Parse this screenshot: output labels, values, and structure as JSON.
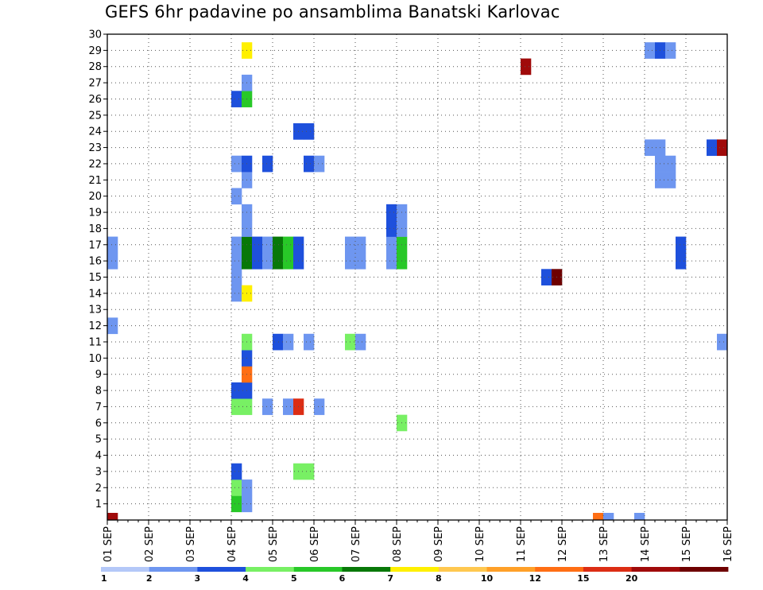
{
  "chart_data": {
    "type": "heatmap",
    "title": "GEFS 6hr padavine po ansamblima Banatski Karlovac",
    "xlabel": "",
    "ylabel": "",
    "x_ticks": [
      "01 SEP",
      "02 SEP",
      "03 SEP",
      "04 SEP",
      "05 SEP",
      "06 SEP",
      "07 SEP",
      "08 SEP",
      "09 SEP",
      "10 SEP",
      "11 SEP",
      "12 SEP",
      "13 SEP",
      "14 SEP",
      "15 SEP",
      "16 SEP"
    ],
    "x_range_days": [
      1,
      16
    ],
    "y_ticks": [
      1,
      2,
      3,
      4,
      5,
      6,
      7,
      8,
      9,
      10,
      11,
      12,
      13,
      14,
      15,
      16,
      17,
      18,
      19,
      20,
      21,
      22,
      23,
      24,
      25,
      26,
      27,
      28,
      29,
      30
    ],
    "y_range": [
      0,
      30
    ],
    "grid": true,
    "time_step_hours": 6,
    "colorbar": {
      "labels": [
        "1",
        "2",
        "3",
        "4",
        "5",
        "6",
        "7",
        "8",
        "10",
        "12",
        "15",
        "20"
      ],
      "colors": [
        "#b4c8f8",
        "#6e96f0",
        "#1e50dc",
        "#78f064",
        "#28c828",
        "#087808",
        "#fff000",
        "#ffc850",
        "#ffa028",
        "#ff6e14",
        "#dc2d14",
        "#a00a0a",
        "#6e0000"
      ]
    },
    "cells": [
      {
        "member": 1,
        "t": 12,
        "level": 4
      },
      {
        "member": 1,
        "t": 13,
        "level": 1
      },
      {
        "member": 2,
        "t": 12,
        "level": 3
      },
      {
        "member": 2,
        "t": 13,
        "level": 1
      },
      {
        "member": 3,
        "t": 12,
        "level": 2
      },
      {
        "member": 3,
        "t": 18,
        "level": 3
      },
      {
        "member": 3,
        "t": 19,
        "level": 3
      },
      {
        "member": 6,
        "t": 28,
        "level": 3
      },
      {
        "member": 7,
        "t": 12,
        "level": 3
      },
      {
        "member": 7,
        "t": 13,
        "level": 3
      },
      {
        "member": 7,
        "t": 15,
        "level": 1
      },
      {
        "member": 7,
        "t": 17,
        "level": 1
      },
      {
        "member": 7,
        "t": 18,
        "level": 10
      },
      {
        "member": 7,
        "t": 20,
        "level": 1
      },
      {
        "member": 8,
        "t": 12,
        "level": 2
      },
      {
        "member": 8,
        "t": 13,
        "level": 2
      },
      {
        "member": 9,
        "t": 13,
        "level": 9
      },
      {
        "member": 10,
        "t": 13,
        "level": 2
      },
      {
        "member": 11,
        "t": 13,
        "level": 3
      },
      {
        "member": 11,
        "t": 16,
        "level": 2
      },
      {
        "member": 11,
        "t": 17,
        "level": 1
      },
      {
        "member": 11,
        "t": 19,
        "level": 1
      },
      {
        "member": 11,
        "t": 23,
        "level": 3
      },
      {
        "member": 11,
        "t": 24,
        "level": 1
      },
      {
        "member": 11,
        "t": 59,
        "level": 1
      },
      {
        "member": 12,
        "t": 0,
        "level": 1
      },
      {
        "member": 14,
        "t": 12,
        "level": 1
      },
      {
        "member": 14,
        "t": 13,
        "level": 6
      },
      {
        "member": 15,
        "t": 12,
        "level": 1
      },
      {
        "member": 15,
        "t": 42,
        "level": 2
      },
      {
        "member": 15,
        "t": 43,
        "level": 12
      },
      {
        "member": 16,
        "t": 0,
        "level": 1
      },
      {
        "member": 16,
        "t": 12,
        "level": 1
      },
      {
        "member": 16,
        "t": 13,
        "level": 5
      },
      {
        "member": 16,
        "t": 14,
        "level": 2
      },
      {
        "member": 16,
        "t": 15,
        "level": 1
      },
      {
        "member": 16,
        "t": 16,
        "level": 5
      },
      {
        "member": 16,
        "t": 17,
        "level": 4
      },
      {
        "member": 16,
        "t": 18,
        "level": 2
      },
      {
        "member": 16,
        "t": 23,
        "level": 1
      },
      {
        "member": 16,
        "t": 24,
        "level": 1
      },
      {
        "member": 16,
        "t": 27,
        "level": 1
      },
      {
        "member": 16,
        "t": 28,
        "level": 4
      },
      {
        "member": 16,
        "t": 55,
        "level": 2
      },
      {
        "member": 17,
        "t": 0,
        "level": 1
      },
      {
        "member": 17,
        "t": 12,
        "level": 1
      },
      {
        "member": 17,
        "t": 13,
        "level": 5
      },
      {
        "member": 17,
        "t": 14,
        "level": 2
      },
      {
        "member": 17,
        "t": 15,
        "level": 1
      },
      {
        "member": 17,
        "t": 16,
        "level": 5
      },
      {
        "member": 17,
        "t": 17,
        "level": 4
      },
      {
        "member": 17,
        "t": 18,
        "level": 2
      },
      {
        "member": 17,
        "t": 23,
        "level": 1
      },
      {
        "member": 17,
        "t": 24,
        "level": 1
      },
      {
        "member": 17,
        "t": 27,
        "level": 1
      },
      {
        "member": 17,
        "t": 28,
        "level": 4
      },
      {
        "member": 17,
        "t": 55,
        "level": 2
      },
      {
        "member": 18,
        "t": 13,
        "level": 1
      },
      {
        "member": 18,
        "t": 27,
        "level": 2
      },
      {
        "member": 18,
        "t": 28,
        "level": 1
      },
      {
        "member": 19,
        "t": 13,
        "level": 1
      },
      {
        "member": 19,
        "t": 27,
        "level": 2
      },
      {
        "member": 19,
        "t": 28,
        "level": 1
      },
      {
        "member": 20,
        "t": 12,
        "level": 1
      },
      {
        "member": 21,
        "t": 13,
        "level": 1
      },
      {
        "member": 21,
        "t": 53,
        "level": 1
      },
      {
        "member": 21,
        "t": 54,
        "level": 1
      },
      {
        "member": 22,
        "t": 12,
        "level": 1
      },
      {
        "member": 22,
        "t": 13,
        "level": 2
      },
      {
        "member": 22,
        "t": 15,
        "level": 2
      },
      {
        "member": 22,
        "t": 19,
        "level": 2
      },
      {
        "member": 22,
        "t": 20,
        "level": 1
      },
      {
        "member": 22,
        "t": 53,
        "level": 1
      },
      {
        "member": 22,
        "t": 54,
        "level": 1
      },
      {
        "member": 23,
        "t": 52,
        "level": 1
      },
      {
        "member": 23,
        "t": 53,
        "level": 1
      },
      {
        "member": 23,
        "t": 58,
        "level": 2
      },
      {
        "member": 23,
        "t": 59,
        "level": 11
      },
      {
        "member": 24,
        "t": 18,
        "level": 2
      },
      {
        "member": 24,
        "t": 19,
        "level": 2
      },
      {
        "member": 26,
        "t": 12,
        "level": 2
      },
      {
        "member": 26,
        "t": 13,
        "level": 4
      },
      {
        "member": 27,
        "t": 13,
        "level": 1
      },
      {
        "member": 28,
        "t": 40,
        "level": 11
      },
      {
        "member": 29,
        "t": 13,
        "level": 6
      },
      {
        "member": 29,
        "t": 52,
        "level": 1
      },
      {
        "member": 29,
        "t": 53,
        "level": 2
      },
      {
        "member": 29,
        "t": 54,
        "level": 1
      }
    ],
    "bottom_strip": [
      {
        "t": 0,
        "level": 11
      },
      {
        "t": 47,
        "level": 9
      },
      {
        "t": 48,
        "level": 1
      },
      {
        "t": 51,
        "level": 1
      }
    ]
  }
}
